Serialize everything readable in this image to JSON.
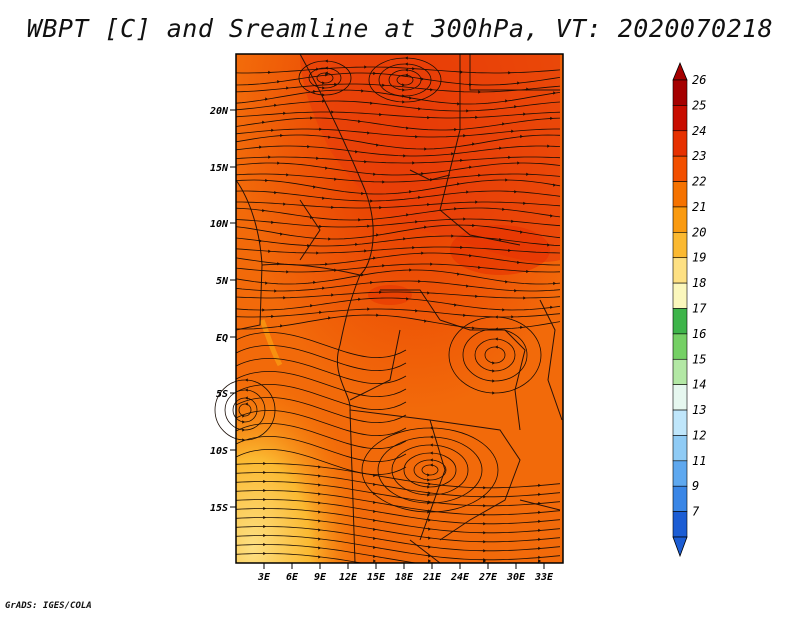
{
  "title": "WBPT [C] and Sreamline at 300hPa, VT: 2020070218",
  "credit": "GrADS: IGES/COLA",
  "map": {
    "lat_labels": [
      "20N",
      "15N",
      "10N",
      "5N",
      "EQ",
      "5S",
      "10S",
      "15S"
    ],
    "lon_labels": [
      "3E",
      "6E",
      "9E",
      "12E",
      "15E",
      "18E",
      "21E",
      "24E",
      "27E",
      "30E",
      "33E"
    ]
  },
  "colorbar": {
    "labels": [
      "26",
      "25",
      "24",
      "23",
      "22",
      "21",
      "20",
      "19",
      "18",
      "17",
      "16",
      "15",
      "14",
      "13",
      "12",
      "11",
      "9",
      "7"
    ],
    "colors": [
      "#a50000",
      "#c80d00",
      "#e63000",
      "#f24f00",
      "#f57200",
      "#f99a10",
      "#fbb931",
      "#fde083",
      "#fbf7bc",
      "#3eb44a",
      "#75d065",
      "#b3e8a5",
      "#e6f7ef",
      "#bfe6fb",
      "#8fcbf5",
      "#5ea8ef",
      "#3a86e6",
      "#1c5dd4"
    ]
  }
}
